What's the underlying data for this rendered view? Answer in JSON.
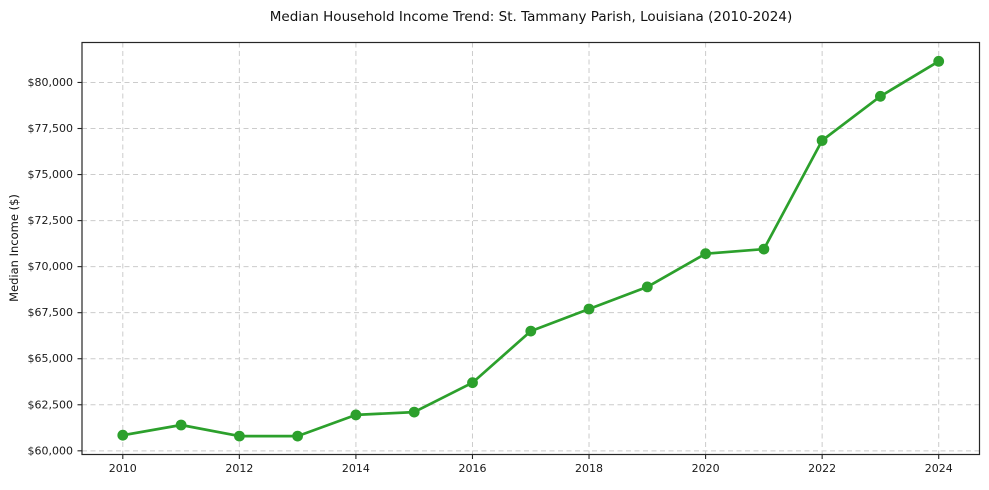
{
  "chart_data": {
    "type": "line",
    "title": "Median Household Income Trend: St. Tammany Parish, Louisiana (2010-2024)",
    "xlabel": "",
    "ylabel": "Median Income ($)",
    "series": [
      {
        "x": [
          2010,
          2011,
          2012,
          2013,
          2014,
          2015,
          2016,
          2017,
          2018,
          2019,
          2020,
          2021,
          2022,
          2023,
          2024
        ],
        "y": [
          60850,
          61400,
          60800,
          60800,
          61950,
          62100,
          63700,
          66500,
          67700,
          68900,
          70700,
          70950,
          76850,
          79250,
          81150
        ]
      }
    ],
    "x_ticks": {
      "values": [
        2010,
        2012,
        2014,
        2016,
        2018,
        2020,
        2022,
        2024
      ],
      "labels": [
        "2010",
        "2012",
        "2014",
        "2016",
        "2018",
        "2020",
        "2022",
        "2024"
      ]
    },
    "y_ticks": {
      "values": [
        60000,
        62500,
        65000,
        67500,
        70000,
        72500,
        75000,
        77500,
        80000
      ],
      "labels": [
        "$60,000",
        "$62,500",
        "$65,000",
        "$67,500",
        "$70,000",
        "$72,500",
        "$75,000",
        "$77,500",
        "$80,000"
      ]
    },
    "xlim": [
      2009.3,
      2024.7
    ],
    "ylim": [
      59800,
      82170
    ],
    "grid": "dashed-both-axes",
    "legend_position": "none",
    "colors": {
      "line": "#2ca02c",
      "marker": "#2ca02c",
      "grid": "#cccccc",
      "spine": "#262626",
      "tick": "#262626",
      "tick_label": "#1a1a1a",
      "title": "#111111",
      "background": "#ffffff"
    }
  }
}
